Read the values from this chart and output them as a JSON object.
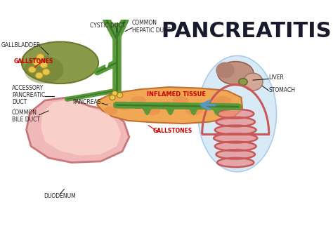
{
  "title": "PANCREATITIS",
  "background_color": "#ffffff",
  "title_color": "#1a1a2e",
  "title_fontsize": 22,
  "title_fontweight": "black",
  "labels": {
    "cystic_duct": "CYSTIC DUCT",
    "gallbladder": "GALLBLADDER",
    "common_hepatic_duct": "COMMON\nHEPATIC DUCT",
    "gallstones_left": "GALLSTONES",
    "pancreas": "PANCREAS",
    "inflamed_tissue": "INFLAMED TISSUE",
    "accessory_pancreatic_duct": "ACCESSORY\nPANCREATIC\nDUCT",
    "common_bile_duct": "COMMON\nBILE DUCT",
    "duodenum": "DUODENUM",
    "gallstones_bottom": "GALLSTONES",
    "liver": "LIVER",
    "stomach": "STOMACH"
  },
  "colors": {
    "gallbladder_fill": "#8b9a4a",
    "gallbladder_dark": "#6b7a2a",
    "gallstone_fill": "#e8c84a",
    "pancreas_fill": "#f0a855",
    "pancreas_inflamed": "#e8834a",
    "duct_green": "#5a9a3a",
    "duct_dark_green": "#3a7a2a",
    "duodenum_fill": "#f0b8b8",
    "duodenum_stroke": "#c87878",
    "intestine_fill": "#e88888",
    "intestine_stroke": "#c85858",
    "right_liver_fill": "#c8a090",
    "body_blue": "#d8eaf5",
    "label_red": "#cc0000",
    "label_black": "#222222",
    "arrow_blue": "#5599cc"
  }
}
